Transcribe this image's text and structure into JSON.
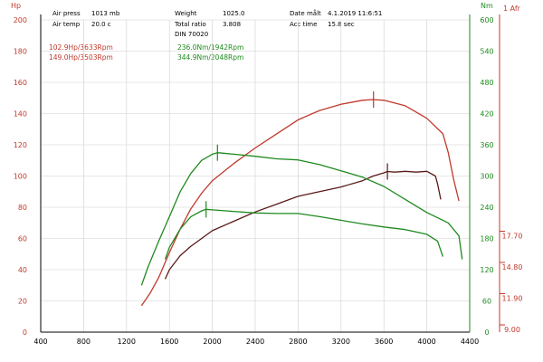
{
  "header": {
    "air_press_label": "Air press",
    "air_press_value": "1013 mb",
    "air_temp_label": "Air temp",
    "air_temp_value": "20.0 c",
    "weight_label": "Weight",
    "weight_value": "1025.0",
    "total_ratio_label": "Total ratio",
    "total_ratio_value": "3.808",
    "din_label": "DIN 70020",
    "date_label": "Date målt",
    "date_value": "4.1.2019 11:6:51",
    "acc_label": "Acc time",
    "acc_value": "15.8 sec"
  },
  "colors": {
    "hp_high": "#c0392b",
    "hp_low": "#5a1a1a",
    "nm": "#1e8a1e",
    "afr_axis": "#c0392b",
    "grid": "#d0d0d0"
  },
  "chart_data": {
    "type": "line",
    "left_axis_label": "Hp",
    "right_axis_label": "Nm",
    "afr_axis_label": "1 Afr",
    "xlim": [
      400,
      4400
    ],
    "x_ticks": [
      "400",
      "800",
      "1200",
      "1600",
      "2000",
      "2400",
      "2800",
      "3200",
      "3600",
      "4000",
      "4400"
    ],
    "ylim_hp": [
      0,
      200
    ],
    "hp_ticks": [
      "0",
      "20",
      "40",
      "60",
      "80",
      "100",
      "120",
      "140",
      "160",
      "180",
      "200"
    ],
    "ylim_nm": [
      0,
      600
    ],
    "nm_ticks": [
      "0",
      "60",
      "120",
      "180",
      "240",
      "300",
      "360",
      "420",
      "480",
      "540",
      "600"
    ],
    "afr_ticks": [
      {
        "label": "17.70",
        "at_nm": 180
      },
      {
        "label": "14.80",
        "at_nm": 120
      },
      {
        "label": "11.90",
        "at_nm": 60
      },
      {
        "label": "9.00",
        "at_nm": 0
      }
    ],
    "legend": [
      {
        "text": "102.9Hp/3633Rpm",
        "color": "hp_low"
      },
      {
        "text": "149.0Hp/3503Rpm",
        "color": "hp_high"
      },
      {
        "text": "236.0Nm/1942Rpm",
        "color": "nm"
      },
      {
        "text": "344.9Nm/2048Rpm",
        "color": "nm"
      }
    ],
    "series": [
      {
        "axis": "hp",
        "color": "hp_high",
        "x": [
          1340,
          1420,
          1500,
          1600,
          1700,
          1800,
          1900,
          2000,
          2200,
          2400,
          2600,
          2800,
          3000,
          3200,
          3400,
          3500,
          3600,
          3800,
          4000,
          4150,
          4200,
          4250,
          4300
        ],
        "y": [
          17,
          25,
          35,
          51,
          66,
          79,
          89,
          97,
          108,
          118,
          127,
          136,
          142,
          146,
          148.5,
          149,
          148.5,
          145,
          137,
          127,
          115,
          98,
          84
        ]
      },
      {
        "axis": "hp",
        "color": "hp_low",
        "x": [
          1560,
          1600,
          1700,
          1800,
          1900,
          2000,
          2200,
          2400,
          2600,
          2800,
          3000,
          3200,
          3400,
          3500,
          3600,
          3633,
          3700,
          3800,
          3900,
          4000,
          4080,
          4100,
          4130
        ],
        "y": [
          34,
          40,
          49,
          55,
          60,
          65,
          71,
          77,
          82,
          87,
          90,
          93,
          97,
          100,
          102,
          102.9,
          102.5,
          103,
          102.5,
          103,
          100,
          95,
          85
        ]
      },
      {
        "axis": "nm",
        "color": "nm",
        "x": [
          1340,
          1400,
          1500,
          1600,
          1700,
          1800,
          1900,
          2000,
          2048,
          2200,
          2400,
          2600,
          2800,
          3000,
          3200,
          3400,
          3600,
          3800,
          4000,
          4200,
          4300,
          4330
        ],
        "y": [
          90,
          125,
          175,
          222,
          270,
          305,
          330,
          342,
          344.9,
          342,
          338,
          333,
          331,
          322,
          310,
          298,
          280,
          255,
          230,
          210,
          185,
          140
        ]
      },
      {
        "axis": "nm",
        "color": "nm",
        "x": [
          1560,
          1600,
          1700,
          1800,
          1900,
          1942,
          2000,
          2200,
          2400,
          2600,
          2800,
          3000,
          3200,
          3400,
          3600,
          3800,
          4000,
          4100,
          4150
        ],
        "y": [
          140,
          163,
          198,
          222,
          233,
          236,
          235,
          232,
          229,
          228,
          228,
          222,
          215,
          208,
          202,
          197,
          188,
          175,
          145
        ]
      }
    ],
    "peak_markers": [
      {
        "x": 3503,
        "axis": "hp",
        "value": 149,
        "color": "hp_high"
      },
      {
        "x": 3633,
        "axis": "hp",
        "value": 102.9,
        "color": "hp_low"
      },
      {
        "x": 2048,
        "axis": "nm",
        "value": 344.9,
        "color": "nm"
      },
      {
        "x": 1942,
        "axis": "nm",
        "value": 236.0,
        "color": "nm"
      }
    ]
  }
}
